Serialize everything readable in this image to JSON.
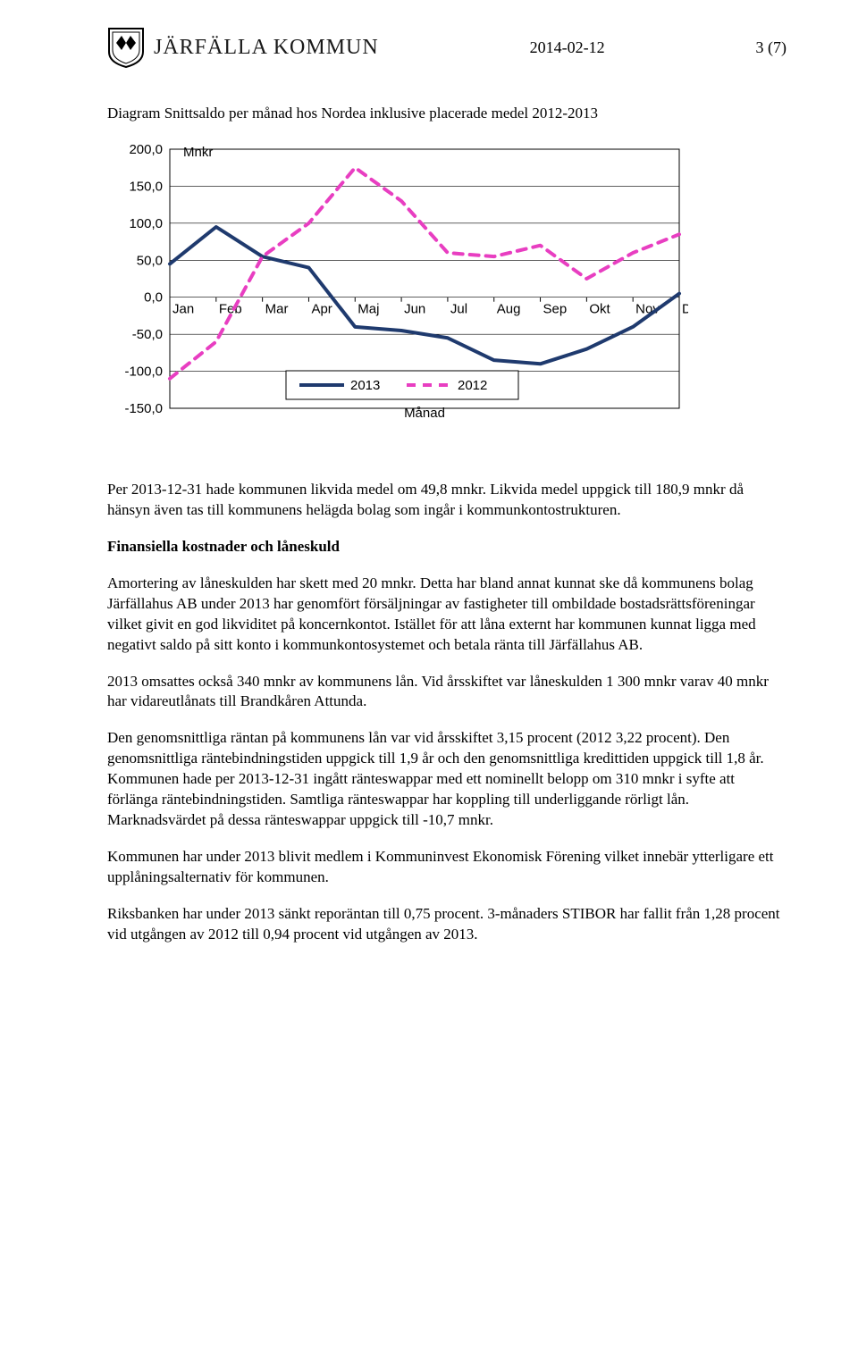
{
  "header": {
    "org": "JÄRFÄLLA KOMMUN",
    "date": "2014-02-12",
    "page": "3 (7)"
  },
  "chart": {
    "title": "Diagram Snittsaldo per månad hos Nordea inklusive placerade medel 2012-2013",
    "type": "line",
    "y_axis_label": "Mnkr",
    "x_axis_label": "Månad",
    "x_categories": [
      "Jan",
      "Feb",
      "Mar",
      "Apr",
      "Maj",
      "Jun",
      "Jul",
      "Aug",
      "Sep",
      "Okt",
      "Nov",
      "Dec"
    ],
    "ylim": [
      -150,
      200
    ],
    "ytick_step": 50,
    "y_ticks": [
      "200,0",
      "150,0",
      "100,0",
      "50,0",
      "0,0",
      "-50,0",
      "-100,0",
      "-150,0"
    ],
    "series": [
      {
        "name": "2013",
        "color": "#1f3a6e",
        "width": 4,
        "dash": "none",
        "values": [
          45,
          95,
          55,
          40,
          -40,
          -45,
          -55,
          -85,
          -90,
          -70,
          -40,
          5
        ]
      },
      {
        "name": "2012",
        "color": "#e83ec1",
        "width": 4,
        "dash": "10,8",
        "values": [
          -110,
          -60,
          55,
          100,
          175,
          130,
          60,
          55,
          70,
          25,
          60,
          85
        ]
      }
    ],
    "legend": {
      "box_border": "#000000",
      "bg": "#ffffff"
    },
    "background": "#ffffff",
    "grid_color": "#000000",
    "tick_fontsize": 15,
    "label_fontsize": 15
  },
  "paragraphs": {
    "p1": "Per 2013-12-31 hade kommunen likvida medel om 49,8 mnkr. Likvida medel uppgick till 180,9 mnkr då hänsyn även tas till kommunens helägda bolag som ingår i kommunkontostrukturen.",
    "h1": "Finansiella kostnader och låneskuld",
    "p2": "Amortering av låneskulden har skett med 20 mnkr. Detta har bland annat kunnat ske då kommunens bolag Järfällahus AB under 2013 har genomfört försäljningar av fastigheter till ombildade bostadsrättsföreningar vilket givit en god likviditet på koncernkontot. Istället för att låna externt har kommunen kunnat ligga med negativt saldo på sitt konto i kommunkontosystemet och betala ränta till Järfällahus AB.",
    "p3": "2013 omsattes också 340 mnkr av kommunens lån. Vid årsskiftet var låneskulden 1 300 mnkr varav 40 mnkr har vidareutlånats till Brandkåren Attunda.",
    "p4": "Den genomsnittliga räntan på kommunens lån var vid årsskiftet 3,15 procent (2012 3,22 procent). Den genomsnittliga räntebindningstiden uppgick till 1,9 år och den genomsnittliga kredittiden uppgick till 1,8 år. Kommunen hade per 2013-12-31 ingått ränteswappar med ett nominellt belopp om 310 mnkr i syfte att förlänga räntebindningstiden. Samtliga ränteswappar har koppling till underliggande rörligt lån. Marknadsvärdet på dessa ränteswappar uppgick till -10,7 mnkr.",
    "p5": "Kommunen har under 2013 blivit medlem i Kommuninvest Ekonomisk Förening vilket innebär ytterligare ett upplåningsalternativ för kommunen.",
    "p6": "Riksbanken har under 2013 sänkt reporäntan till 0,75 procent. 3-månaders STIBOR har fallit från 1,28 procent vid utgången av 2012 till 0,94 procent vid utgången av 2013."
  }
}
